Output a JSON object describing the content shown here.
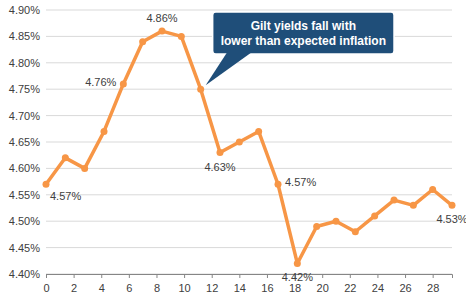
{
  "chart_data": {
    "type": "line",
    "x": [
      0,
      1.4,
      2.8,
      4.2,
      5.6,
      7,
      8.4,
      9.8,
      11.2,
      12.6,
      14,
      15.4,
      16.8,
      18.2,
      19.6,
      21,
      22.4,
      23.8,
      25.2,
      26.6,
      28,
      29.4
    ],
    "values": [
      4.57,
      4.62,
      4.6,
      4.67,
      4.76,
      4.84,
      4.86,
      4.85,
      4.75,
      4.63,
      4.65,
      4.67,
      4.57,
      4.42,
      4.49,
      4.5,
      4.48,
      4.51,
      4.54,
      4.53,
      4.56,
      4.53
    ],
    "value_labels": [
      "4.57%",
      null,
      null,
      null,
      "4.76%",
      null,
      "4.86%",
      null,
      null,
      "4.63%",
      null,
      null,
      "4.57%",
      "4.42%",
      null,
      null,
      null,
      null,
      null,
      null,
      null,
      "4.53%"
    ],
    "data_labels": true,
    "color": "#f79646",
    "marker": "circle",
    "xlim": [
      0,
      29.4
    ],
    "xticks": [
      0,
      2,
      4,
      6,
      8,
      10,
      12,
      14,
      16,
      18,
      20,
      22,
      24,
      26,
      28
    ],
    "ylim": [
      4.4,
      4.9
    ],
    "yticks": [
      {
        "value": 4.4,
        "label": "4.40%"
      },
      {
        "value": 4.45,
        "label": "4.45%"
      },
      {
        "value": 4.5,
        "label": "4.50%"
      },
      {
        "value": 4.55,
        "label": "4.55%"
      },
      {
        "value": 4.6,
        "label": "4.60%"
      },
      {
        "value": 4.65,
        "label": "4.65%"
      },
      {
        "value": 4.7,
        "label": "4.70%"
      },
      {
        "value": 4.75,
        "label": "4.75%"
      },
      {
        "value": 4.8,
        "label": "4.80%"
      },
      {
        "value": 4.85,
        "label": "4.85%"
      },
      {
        "value": 4.9,
        "label": "4.90%"
      }
    ],
    "grid": true,
    "annotations": [
      {
        "text": "Gilt yields fall with lower than expected inflation",
        "x": 11.2,
        "y": 4.75
      }
    ]
  }
}
